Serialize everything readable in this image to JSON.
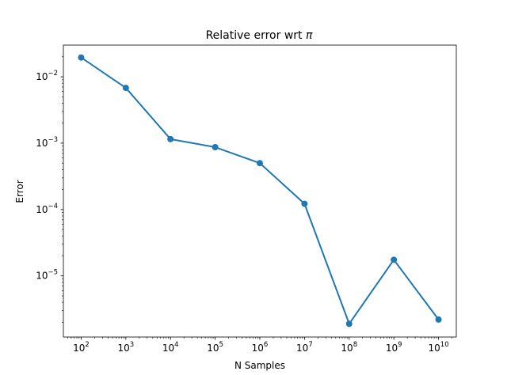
{
  "chart_data": {
    "type": "line",
    "title": "Relative error wrt π",
    "title_prefix": "Relative error wrt ",
    "title_symbol": "π",
    "xlabel": "N Samples",
    "ylabel": "Error",
    "x_scale": "log",
    "y_scale": "log",
    "grid": false,
    "line_color": "#1f77b4",
    "x": [
      100,
      1000,
      10000,
      100000,
      1000000,
      10000000,
      100000000,
      1000000000,
      10000000000
    ],
    "y": [
      0.0195,
      0.0068,
      0.00115,
      0.00087,
      0.0005,
      0.000122,
      1.9e-06,
      1.75e-05,
      2.2e-06
    ],
    "xlim": [
      40,
      25000000000
    ],
    "ylim": [
      1.2e-06,
      0.03
    ],
    "x_ticks": [
      {
        "value": 100,
        "base": "10",
        "exp": "2"
      },
      {
        "value": 1000,
        "base": "10",
        "exp": "3"
      },
      {
        "value": 10000,
        "base": "10",
        "exp": "4"
      },
      {
        "value": 100000,
        "base": "10",
        "exp": "5"
      },
      {
        "value": 1000000,
        "base": "10",
        "exp": "6"
      },
      {
        "value": 10000000,
        "base": "10",
        "exp": "7"
      },
      {
        "value": 100000000,
        "base": "10",
        "exp": "8"
      },
      {
        "value": 1000000000,
        "base": "10",
        "exp": "9"
      },
      {
        "value": 10000000000,
        "base": "10",
        "exp": "10"
      }
    ],
    "y_ticks": [
      {
        "value": 0.01,
        "base": "10",
        "exp": "−2"
      },
      {
        "value": 0.001,
        "base": "10",
        "exp": "−3"
      },
      {
        "value": 0.0001,
        "base": "10",
        "exp": "−4"
      },
      {
        "value": 1e-05,
        "base": "10",
        "exp": "−5"
      }
    ]
  }
}
